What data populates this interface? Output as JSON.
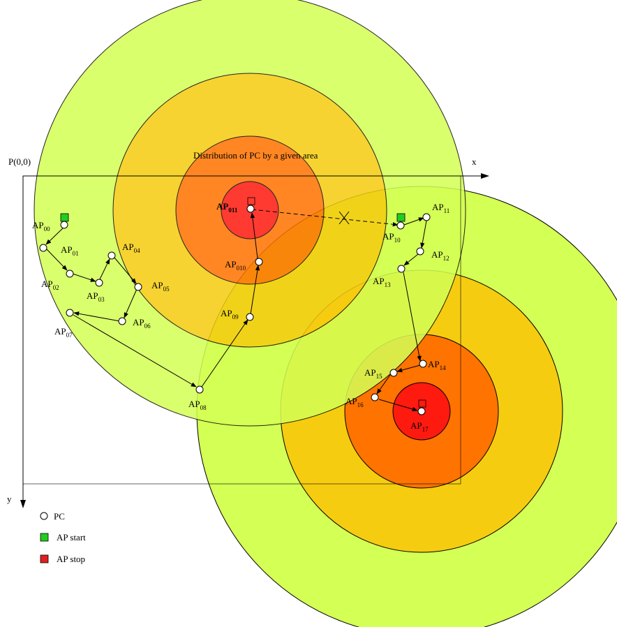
{
  "axes": {
    "origin_label": "P(0,0)",
    "x_label": "x",
    "y_label": "y"
  },
  "area_label": "Distribution of PC by a given area",
  "zone_colors": {
    "outer": "#d4ff55",
    "mid": "#f5cc10",
    "inner": "#ff7300",
    "core": "#ff1a10"
  },
  "legend": {
    "pc": "PC",
    "start": "AP start",
    "stop": "AP stop",
    "start_color": "#22cc22",
    "stop_color": "#e02020"
  },
  "cluster_0": {
    "ap00": {
      "base": "AP",
      "sub": "00"
    },
    "ap01": {
      "base": "AP",
      "sub": "01"
    },
    "ap02": {
      "base": "AP",
      "sub": "02"
    },
    "ap03": {
      "base": "AP",
      "sub": "03"
    },
    "ap04": {
      "base": "AP",
      "sub": "04"
    },
    "ap05": {
      "base": "AP",
      "sub": "05"
    },
    "ap06": {
      "base": "AP",
      "sub": "06"
    },
    "ap07": {
      "base": "AP",
      "sub": "07"
    },
    "ap08": {
      "base": "AP",
      "sub": "08"
    },
    "ap09": {
      "base": "AP",
      "sub": "09"
    },
    "ap010": {
      "base": "AP",
      "sub": "010"
    },
    "ap011": {
      "base": "AP",
      "sub": "011"
    }
  },
  "cluster_1": {
    "ap10": {
      "base": "AP",
      "sub": "10"
    },
    "ap11": {
      "base": "AP",
      "sub": "11"
    },
    "ap12": {
      "base": "AP",
      "sub": "12"
    },
    "ap13": {
      "base": "AP",
      "sub": "13"
    },
    "ap14": {
      "base": "AP",
      "sub": "14"
    },
    "ap15": {
      "base": "AP",
      "sub": "15"
    },
    "ap16": {
      "base": "AP",
      "sub": "16"
    },
    "ap17": {
      "base": "AP",
      "sub": "17"
    }
  }
}
